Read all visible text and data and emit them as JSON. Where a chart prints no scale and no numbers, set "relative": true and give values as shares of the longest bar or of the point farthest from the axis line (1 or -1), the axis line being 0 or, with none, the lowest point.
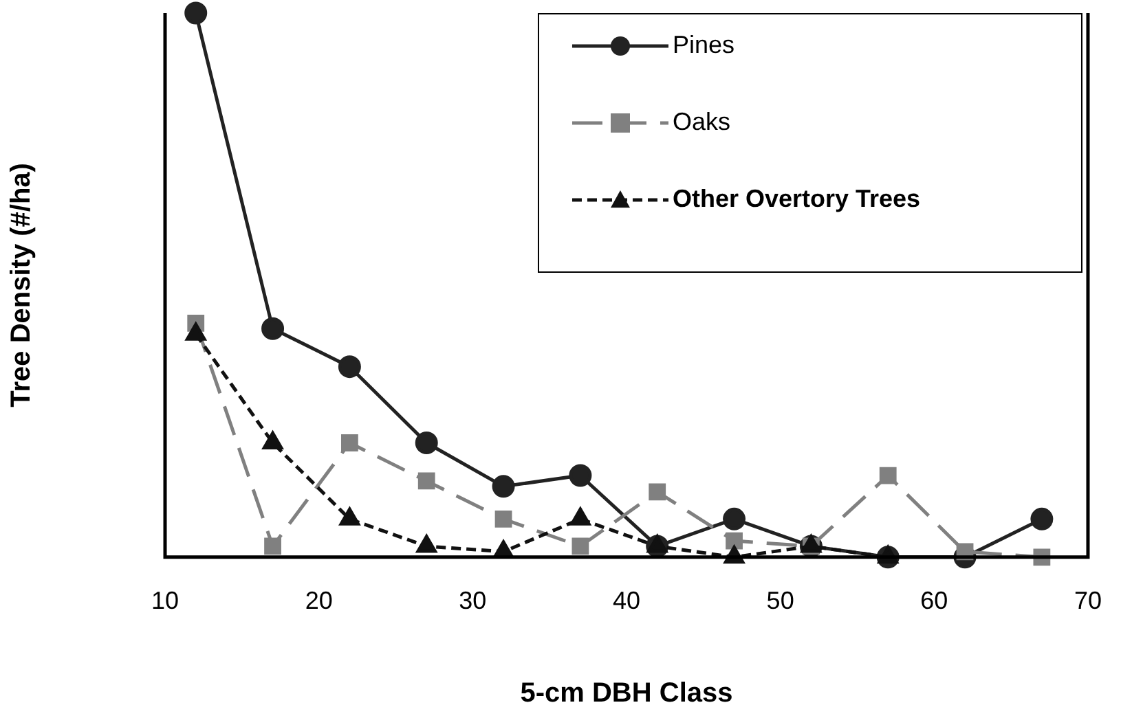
{
  "chart_data": {
    "type": "line",
    "xlabel": "5-cm DBH Class",
    "ylabel": "Tree Density (#/ha)",
    "relative": true,
    "x": [
      12,
      17,
      22,
      27,
      32,
      37,
      42,
      47,
      52,
      57,
      62,
      67
    ],
    "xlim": [
      10,
      70
    ],
    "xticks": [
      10,
      20,
      30,
      40,
      50,
      60,
      70
    ],
    "grid": false,
    "legend": "top right",
    "series": [
      {
        "name": "Pines",
        "color": "#222222",
        "marker": "circle",
        "line_style": "solid",
        "values": [
          1,
          0.42,
          0.35,
          0.21,
          0.13,
          0.15,
          0.02,
          0.07,
          0.02,
          0,
          0,
          0.07
        ]
      },
      {
        "name": "Oaks",
        "color": "#808080",
        "marker": "square",
        "line_style": "dashed",
        "values": [
          0.43,
          0.02,
          0.21,
          0.14,
          0.07,
          0.02,
          0.12,
          0.03,
          0.02,
          0.15,
          0.01,
          0
        ]
      },
      {
        "name": "Other Overtory Trees",
        "color": "#111111",
        "marker": "triangle",
        "line_style": "dotted",
        "values": [
          0.41,
          0.21,
          0.07,
          0.02,
          0.01,
          0.07,
          0.02,
          0,
          0.02,
          0,
          null,
          null
        ]
      }
    ]
  }
}
